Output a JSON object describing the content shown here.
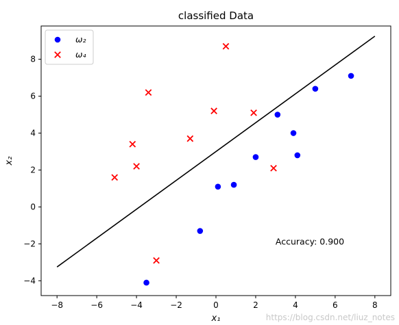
{
  "chart_data": {
    "type": "scatter",
    "title": "classified Data",
    "xlabel": "x₁",
    "ylabel": "x₂",
    "xlim": [
      -8.8,
      8.8
    ],
    "ylim": [
      -4.8,
      9.8
    ],
    "xticks": [
      -8,
      -6,
      -4,
      -2,
      0,
      2,
      4,
      6,
      8
    ],
    "yticks": [
      -4,
      -2,
      0,
      2,
      4,
      6,
      8
    ],
    "grid": false,
    "legend_position": "upper-left",
    "series": [
      {
        "name": "ω₂",
        "marker": "circle",
        "color": "#0000ff",
        "points": [
          {
            "x": -3.5,
            "y": -4.1
          },
          {
            "x": -0.8,
            "y": -1.3
          },
          {
            "x": 0.1,
            "y": 1.1
          },
          {
            "x": 0.9,
            "y": 1.2
          },
          {
            "x": 2.0,
            "y": 2.7
          },
          {
            "x": 3.1,
            "y": 5.0
          },
          {
            "x": 3.9,
            "y": 4.0
          },
          {
            "x": 4.1,
            "y": 2.8
          },
          {
            "x": 5.0,
            "y": 6.4
          },
          {
            "x": 6.8,
            "y": 7.1
          }
        ]
      },
      {
        "name": "ω₄",
        "marker": "x",
        "color": "#ff0000",
        "points": [
          {
            "x": -5.1,
            "y": 1.6
          },
          {
            "x": -4.2,
            "y": 3.4
          },
          {
            "x": -4.0,
            "y": 2.2
          },
          {
            "x": -3.4,
            "y": 6.2
          },
          {
            "x": -3.0,
            "y": -2.9
          },
          {
            "x": -1.3,
            "y": 3.7
          },
          {
            "x": -0.1,
            "y": 5.2
          },
          {
            "x": 0.5,
            "y": 8.7
          },
          {
            "x": 1.9,
            "y": 5.1
          },
          {
            "x": 2.9,
            "y": 2.1
          }
        ]
      }
    ],
    "decision_line": {
      "color": "#000000",
      "points": [
        {
          "x": -8,
          "y": -3.25
        },
        {
          "x": 8,
          "y": 9.25
        }
      ]
    },
    "annotations": [
      {
        "text": "Accuracy: 0.900",
        "x": 3.0,
        "y": -1.9
      }
    ]
  },
  "watermark": "https://blog.csdn.net/liuz_notes"
}
